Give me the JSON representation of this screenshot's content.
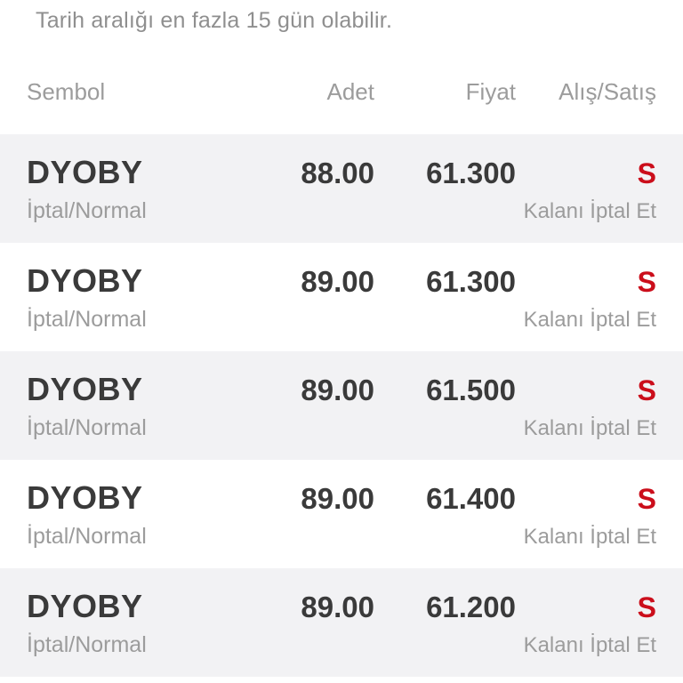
{
  "notice": "Tarih aralığı en fazla 15 gün olabilir.",
  "table": {
    "headers": {
      "symbol": "Sembol",
      "quantity": "Adet",
      "price": "Fiyat",
      "side": "Alış/Satış"
    },
    "rows": [
      {
        "symbol": "DYOBY",
        "status": "İptal/Normal",
        "quantity": "88.00",
        "price": "61.300",
        "side": "S",
        "action": "Kalanı İptal Et"
      },
      {
        "symbol": "DYOBY",
        "status": "İptal/Normal",
        "quantity": "89.00",
        "price": "61.300",
        "side": "S",
        "action": "Kalanı İptal Et"
      },
      {
        "symbol": "DYOBY",
        "status": "İptal/Normal",
        "quantity": "89.00",
        "price": "61.500",
        "side": "S",
        "action": "Kalanı İptal Et"
      },
      {
        "symbol": "DYOBY",
        "status": "İptal/Normal",
        "quantity": "89.00",
        "price": "61.400",
        "side": "S",
        "action": "Kalanı İptal Et"
      },
      {
        "symbol": "DYOBY",
        "status": "İptal/Normal",
        "quantity": "89.00",
        "price": "61.200",
        "side": "S",
        "action": "Kalanı İptal Et"
      }
    ]
  },
  "colors": {
    "sell_red": "#cb0e1b",
    "row_alt_bg": "#f2f2f4",
    "text_dark": "#3a3a3a",
    "text_gray": "#9c9c9c"
  }
}
